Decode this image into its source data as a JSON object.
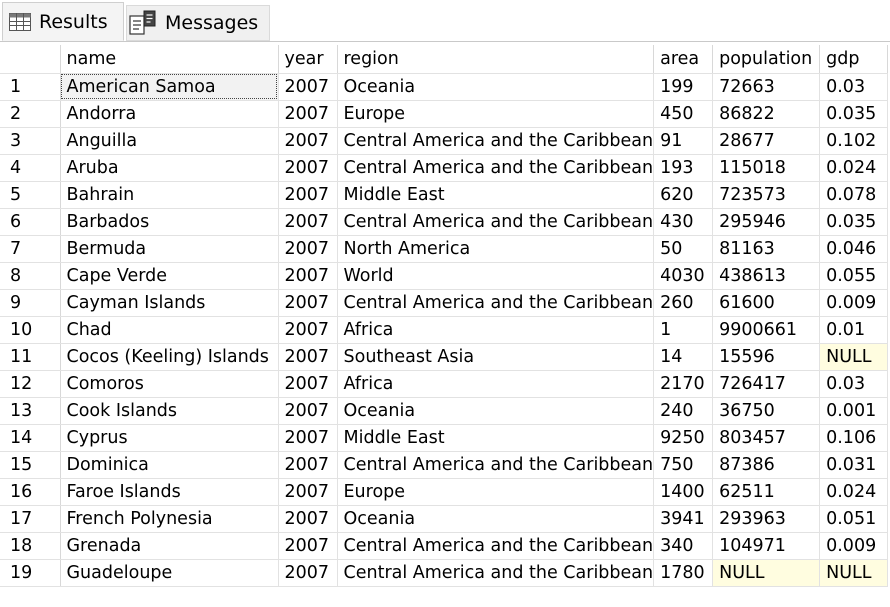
{
  "tabs": [
    {
      "label": "Results",
      "icon": "grid-icon"
    },
    {
      "label": "Messages",
      "icon": "messages-icon"
    }
  ],
  "grid": {
    "columns": [
      "name",
      "year",
      "region",
      "area",
      "population",
      "gdp"
    ],
    "rows": [
      {
        "n": "1",
        "cells": [
          "American Samoa",
          "2007",
          "Oceania",
          "199",
          "72663",
          "0.03"
        ]
      },
      {
        "n": "2",
        "cells": [
          "Andorra",
          "2007",
          "Europe",
          "450",
          "86822",
          "0.035"
        ]
      },
      {
        "n": "3",
        "cells": [
          "Anguilla",
          "2007",
          "Central America and the Caribbean",
          "91",
          "28677",
          "0.102"
        ]
      },
      {
        "n": "4",
        "cells": [
          "Aruba",
          "2007",
          "Central America and the Caribbean",
          "193",
          "115018",
          "0.024"
        ]
      },
      {
        "n": "5",
        "cells": [
          "Bahrain",
          "2007",
          "Middle East",
          "620",
          "723573",
          "0.078"
        ]
      },
      {
        "n": "6",
        "cells": [
          "Barbados",
          "2007",
          "Central America and the Caribbean",
          "430",
          "295946",
          "0.035"
        ]
      },
      {
        "n": "7",
        "cells": [
          "Bermuda",
          "2007",
          "North America",
          "50",
          "81163",
          "0.046"
        ]
      },
      {
        "n": "8",
        "cells": [
          "Cape Verde",
          "2007",
          "World",
          "4030",
          "438613",
          "0.055"
        ]
      },
      {
        "n": "9",
        "cells": [
          "Cayman Islands",
          "2007",
          "Central America and the Caribbean",
          "260",
          "61600",
          "0.009"
        ]
      },
      {
        "n": "10",
        "cells": [
          "Chad",
          "2007",
          "Africa",
          "1",
          "9900661",
          "0.01"
        ]
      },
      {
        "n": "11",
        "cells": [
          "Cocos (Keeling) Islands",
          "2007",
          "Southeast Asia",
          "14",
          "15596",
          "NULL"
        ]
      },
      {
        "n": "12",
        "cells": [
          "Comoros",
          "2007",
          "Africa",
          "2170",
          "726417",
          "0.03"
        ]
      },
      {
        "n": "13",
        "cells": [
          "Cook Islands",
          "2007",
          "Oceania",
          "240",
          "36750",
          "0.001"
        ]
      },
      {
        "n": "14",
        "cells": [
          "Cyprus",
          "2007",
          "Middle East",
          "9250",
          "803457",
          "0.106"
        ]
      },
      {
        "n": "15",
        "cells": [
          "Dominica",
          "2007",
          "Central America and the Caribbean",
          "750",
          "87386",
          "0.031"
        ]
      },
      {
        "n": "16",
        "cells": [
          "Faroe Islands",
          "2007",
          "Europe",
          "1400",
          "62511",
          "0.024"
        ]
      },
      {
        "n": "17",
        "cells": [
          "French Polynesia",
          "2007",
          "Oceania",
          "3941",
          "293963",
          "0.051"
        ]
      },
      {
        "n": "18",
        "cells": [
          "Grenada",
          "2007",
          "Central America and the Caribbean",
          "340",
          "104971",
          "0.009"
        ]
      },
      {
        "n": "19",
        "cells": [
          "Guadeloupe",
          "2007",
          "Central America and the Caribbean",
          "1780",
          "NULL",
          "NULL"
        ]
      }
    ]
  },
  "colors": {
    "null_highlight": "#fffde0",
    "grid_line": "#e2e2e2",
    "selected_cell": "#f2f2f2"
  }
}
